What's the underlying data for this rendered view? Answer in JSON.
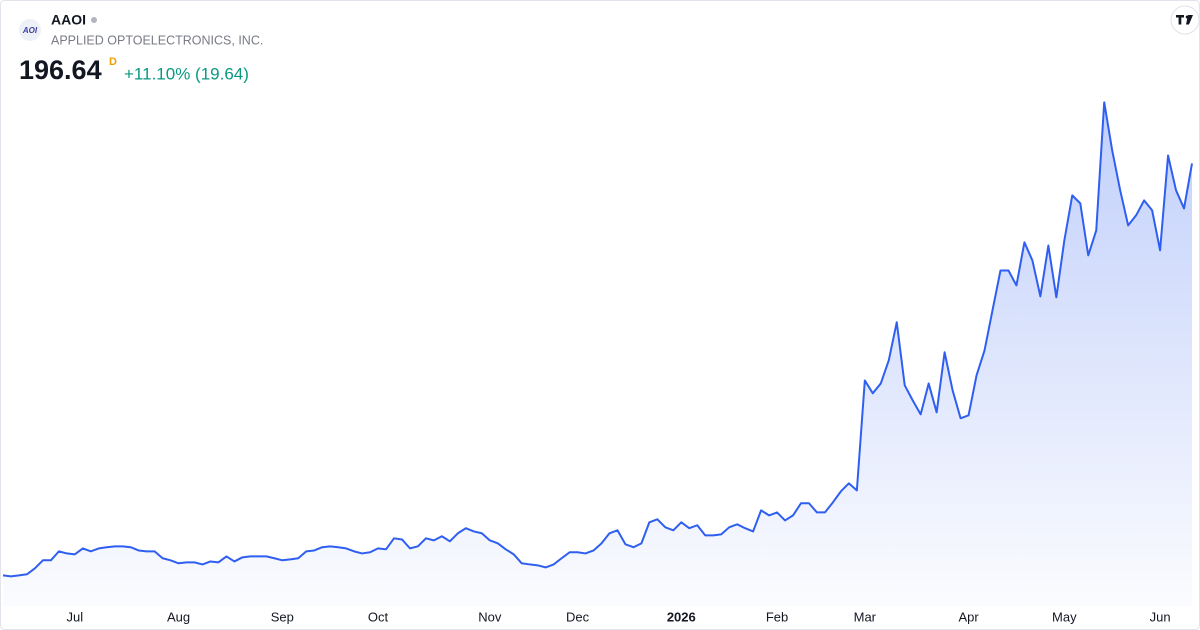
{
  "chart_data": {
    "type": "area",
    "title": "AAOI",
    "subtitle": "APPLIED OPTOELECTRONICS, INC.",
    "logo": "AOI",
    "last_price": 196.64,
    "interval": "D",
    "change": "+11.10% (19.64)",
    "color": "#2f5ff0",
    "change_color": "#089981",
    "ylim": [
      10,
      230
    ],
    "categories": [
      null,
      null,
      null,
      null,
      null,
      null,
      null,
      null,
      null,
      "Jul",
      null,
      null,
      null,
      null,
      null,
      null,
      null,
      null,
      null,
      null,
      null,
      null,
      "Aug",
      null,
      null,
      null,
      null,
      null,
      null,
      null,
      null,
      null,
      null,
      null,
      null,
      "Sep",
      null,
      null,
      null,
      null,
      null,
      null,
      null,
      null,
      null,
      null,
      null,
      "Oct",
      null,
      null,
      null,
      null,
      null,
      null,
      null,
      null,
      null,
      null,
      null,
      null,
      null,
      "Nov",
      null,
      null,
      null,
      null,
      null,
      null,
      null,
      null,
      null,
      null,
      "Dec",
      null,
      null,
      null,
      null,
      null,
      null,
      null,
      null,
      null,
      null,
      null,
      null,
      "2026",
      null,
      null,
      null,
      null,
      null,
      null,
      null,
      null,
      null,
      null,
      null,
      "Feb",
      null,
      null,
      null,
      null,
      null,
      null,
      null,
      null,
      null,
      null,
      "Mar",
      null,
      null,
      null,
      null,
      null,
      null,
      null,
      null,
      null,
      null,
      null,
      null,
      "Apr",
      null,
      null,
      null,
      null,
      null,
      null,
      null,
      null,
      null,
      null,
      null,
      "May",
      null,
      null,
      null,
      null,
      null,
      null,
      null,
      null,
      null,
      null,
      null,
      "Jun",
      null,
      null,
      null,
      null
    ],
    "values": [
      16.8,
      16.4,
      16.8,
      17.3,
      19.9,
      23.4,
      23.4,
      27.3,
      26.4,
      26.0,
      28.6,
      27.3,
      28.6,
      29.1,
      29.5,
      29.5,
      29.1,
      27.7,
      27.3,
      27.3,
      24.3,
      23.4,
      22.1,
      22.5,
      22.5,
      21.6,
      22.9,
      22.5,
      25.1,
      22.9,
      24.7,
      25.1,
      25.1,
      25.1,
      24.3,
      23.4,
      23.8,
      24.3,
      27.3,
      27.7,
      29.1,
      29.5,
      29.1,
      28.6,
      27.3,
      26.4,
      26.9,
      28.6,
      28.2,
      33.0,
      32.5,
      28.6,
      29.5,
      33.0,
      32.1,
      33.9,
      31.7,
      35.2,
      37.4,
      36.0,
      35.2,
      32.1,
      30.8,
      28.2,
      26.0,
      22.1,
      21.6,
      21.2,
      20.3,
      21.6,
      24.3,
      26.9,
      26.9,
      26.4,
      27.7,
      30.8,
      35.2,
      36.5,
      30.4,
      29.1,
      30.8,
      40.0,
      41.3,
      37.8,
      36.5,
      40.0,
      37.4,
      38.7,
      34.3,
      34.3,
      34.7,
      37.8,
      39.1,
      37.4,
      36.0,
      45.2,
      43.0,
      44.3,
      40.8,
      43.0,
      48.3,
      48.3,
      44.3,
      44.3,
      48.7,
      53.5,
      57.0,
      53.9,
      101.9,
      96.3,
      100.6,
      110.7,
      127.3,
      99.8,
      93.2,
      87.1,
      100.6,
      88.0,
      114.2,
      97.6,
      85.4,
      86.7,
      104.1,
      115.0,
      132.5,
      149.9,
      149.9,
      143.4,
      162.2,
      154.3,
      138.6,
      160.8,
      138.2,
      163.0,
      182.7,
      179.2,
      156.5,
      167.4,
      223.3,
      202.3,
      184.9,
      169.6,
      174.0,
      180.5,
      176.2,
      158.7,
      200.1,
      184.9,
      177.0,
      196.64
    ]
  }
}
